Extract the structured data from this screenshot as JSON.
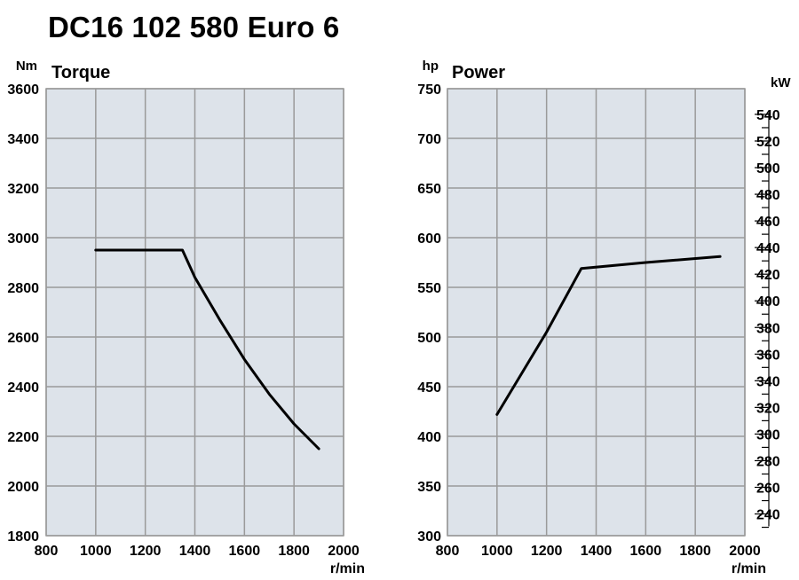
{
  "page": {
    "title": "DC16 102 580 Euro 6"
  },
  "chart_data": [
    {
      "type": "line",
      "title": "Torque",
      "ylabel": "Nm",
      "xlabel": "r/min",
      "xlim": [
        800,
        2000
      ],
      "ylim": [
        1800,
        3600
      ],
      "xticks": [
        800,
        1000,
        1200,
        1400,
        1600,
        1800,
        2000
      ],
      "yticks": [
        1800,
        2000,
        2200,
        2400,
        2600,
        2800,
        3000,
        3200,
        3400,
        3600
      ],
      "grid": true,
      "series": [
        {
          "x": [
            1000,
            1100,
            1200,
            1300,
            1350,
            1400,
            1500,
            1600,
            1700,
            1800,
            1900
          ],
          "y": [
            2950,
            2950,
            2950,
            2950,
            2950,
            2840,
            2670,
            2510,
            2370,
            2250,
            2150
          ]
        }
      ]
    },
    {
      "type": "line",
      "title": "Power",
      "ylabel": "hp",
      "y2label": "kW",
      "xlabel": "r/min",
      "xlim": [
        800,
        2000
      ],
      "ylim": [
        300,
        750
      ],
      "y2ticks": [
        240,
        260,
        280,
        300,
        320,
        340,
        360,
        380,
        400,
        420,
        440,
        460,
        480,
        500,
        520,
        540
      ],
      "xticks": [
        800,
        1000,
        1200,
        1400,
        1600,
        1800,
        2000
      ],
      "yticks": [
        300,
        350,
        400,
        450,
        500,
        550,
        600,
        650,
        700,
        750
      ],
      "grid": true,
      "series": [
        {
          "x": [
            1000,
            1200,
            1340,
            1600,
            1900
          ],
          "y": [
            422,
            505,
            569,
            575,
            581
          ]
        }
      ]
    }
  ]
}
